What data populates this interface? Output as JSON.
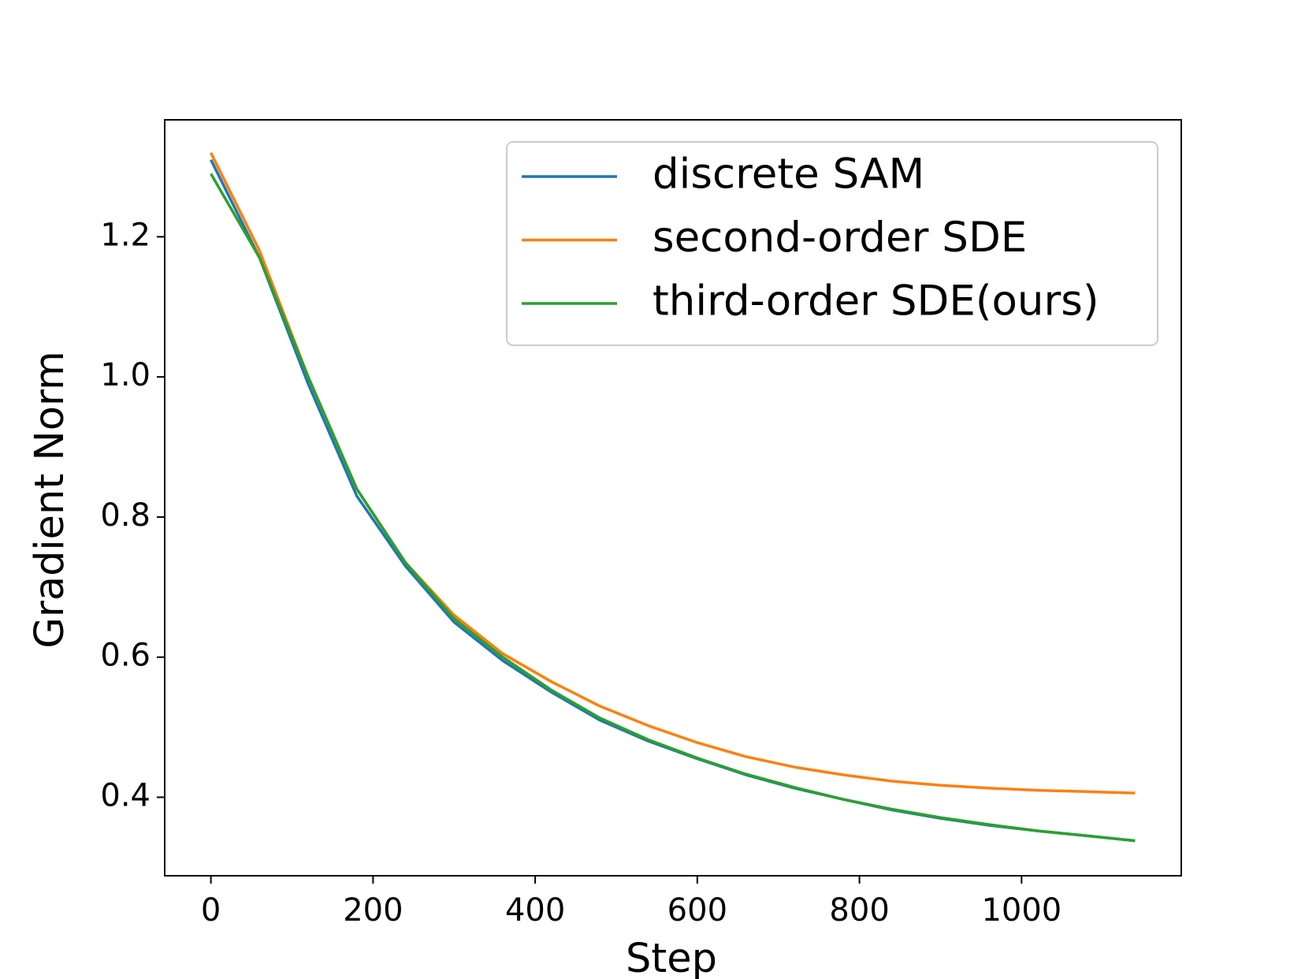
{
  "chart_data": {
    "type": "line",
    "xlabel": "Step",
    "ylabel": "Gradient Norm",
    "x": [
      0,
      60,
      120,
      180,
      240,
      300,
      360,
      420,
      480,
      540,
      600,
      660,
      720,
      780,
      840,
      900,
      960,
      1020,
      1080,
      1140
    ],
    "series": [
      {
        "name": "discrete SAM",
        "color": "#1f77b4",
        "values": [
          1.31,
          1.17,
          0.99,
          0.83,
          0.73,
          0.65,
          0.595,
          0.55,
          0.51,
          0.48,
          0.455,
          0.432,
          0.413,
          0.397,
          0.382,
          0.37,
          0.36,
          0.352,
          0.345,
          0.338
        ]
      },
      {
        "name": "second-order SDE",
        "color": "#ff7f0e",
        "values": [
          1.32,
          1.18,
          1.0,
          0.84,
          0.735,
          0.66,
          0.605,
          0.565,
          0.53,
          0.502,
          0.478,
          0.458,
          0.443,
          0.432,
          0.423,
          0.417,
          0.413,
          0.41,
          0.408,
          0.406
        ]
      },
      {
        "name": "third-order SDE(ours)",
        "color": "#2ca02c",
        "values": [
          1.29,
          1.17,
          1.0,
          0.84,
          0.735,
          0.655,
          0.6,
          0.553,
          0.513,
          0.482,
          0.456,
          0.433,
          0.414,
          0.397,
          0.383,
          0.371,
          0.361,
          0.352,
          0.345,
          0.338
        ]
      }
    ],
    "xlim": [
      -57,
      1197
    ],
    "ylim": [
      0.288,
      1.367
    ],
    "xticks": [
      0,
      200,
      400,
      600,
      800,
      1000
    ],
    "yticks": [
      0.4,
      0.6,
      0.8,
      {
        "value": 1,
        "label": "1.0"
      },
      1.2
    ],
    "legend": "upper right"
  }
}
